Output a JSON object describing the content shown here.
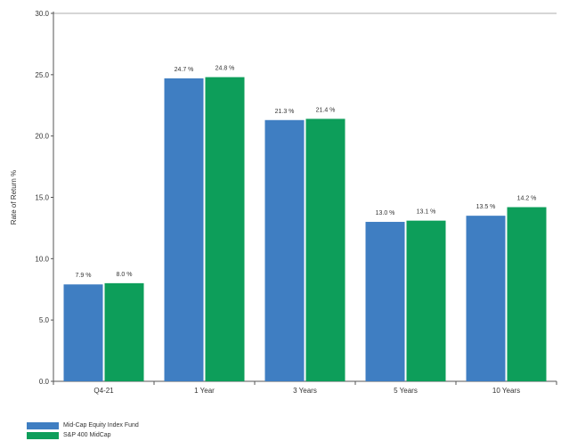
{
  "chart_data": {
    "type": "bar",
    "title": "",
    "xlabel": "",
    "ylabel": "Rate of Return %",
    "ylim": [
      0,
      30
    ],
    "yticks": [
      "0.0",
      "5.0",
      "10.0",
      "15.0",
      "20.0",
      "25.0",
      "30.0"
    ],
    "categories": [
      "Q4-21",
      "1 Year",
      "3 Years",
      "5 Years",
      "10 Years"
    ],
    "series": [
      {
        "name": "Mid-Cap Equity Index Fund",
        "color": "#3f7ec2",
        "values": [
          7.9,
          24.7,
          21.3,
          13.0,
          13.5
        ],
        "labels": [
          "7.9 %",
          "24.7 %",
          "21.3 %",
          "13.0 %",
          "13.5 %"
        ]
      },
      {
        "name": "S&P 400 MidCap",
        "color": "#0d9e5a",
        "values": [
          8.0,
          24.8,
          21.4,
          13.1,
          14.2
        ],
        "labels": [
          "8.0 %",
          "24.8 %",
          "21.4 %",
          "13.1 %",
          "14.2 %"
        ]
      }
    ],
    "grid": "top line only",
    "legend_position": "bottom-left"
  }
}
